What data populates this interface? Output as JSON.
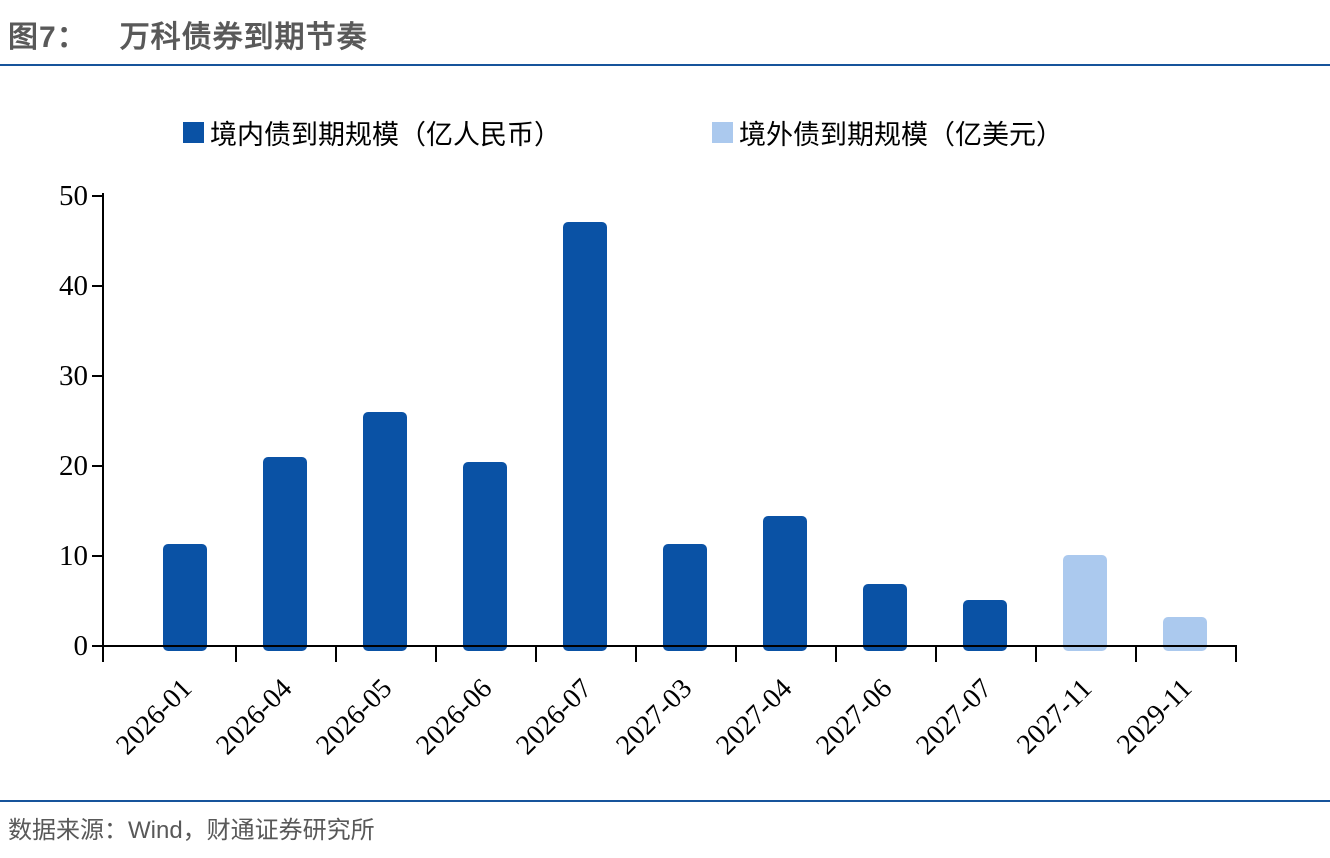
{
  "header": {
    "figure_label": "图7：",
    "title": "万科债券到期节奏"
  },
  "legend": [
    {
      "label": "境内债到期规模（亿人民币）",
      "color": "#0A52A5"
    },
    {
      "label": "境外债到期规模（亿美元）",
      "color": "#ABC9EE"
    }
  ],
  "footer": {
    "source": "数据来源：Wind，财通证券研究所"
  },
  "chart_data": {
    "type": "bar",
    "title": "万科债券到期节奏",
    "categories": [
      "2026-01",
      "2026-04",
      "2026-05",
      "2026-06",
      "2026-07",
      "2027-03",
      "2027-04",
      "2027-06",
      "2027-07",
      "2027-11",
      "2029-11"
    ],
    "series": [
      {
        "name": "境内债到期规模（亿人民币）",
        "color": "#0A52A5",
        "values": [
          11.2,
          20.9,
          25.9,
          20.3,
          47.0,
          11.2,
          14.3,
          6.8,
          5.0,
          null,
          null
        ]
      },
      {
        "name": "境外债到期规模（亿美元）",
        "color": "#ABC9EE",
        "values": [
          null,
          null,
          null,
          null,
          null,
          null,
          null,
          null,
          null,
          10.0,
          3.1
        ]
      }
    ],
    "xlabel": "",
    "ylabel": "",
    "ylim": [
      0,
      50
    ],
    "yticks": [
      0,
      10,
      20,
      30,
      40,
      50
    ],
    "grid": false,
    "legend_position": "top"
  }
}
